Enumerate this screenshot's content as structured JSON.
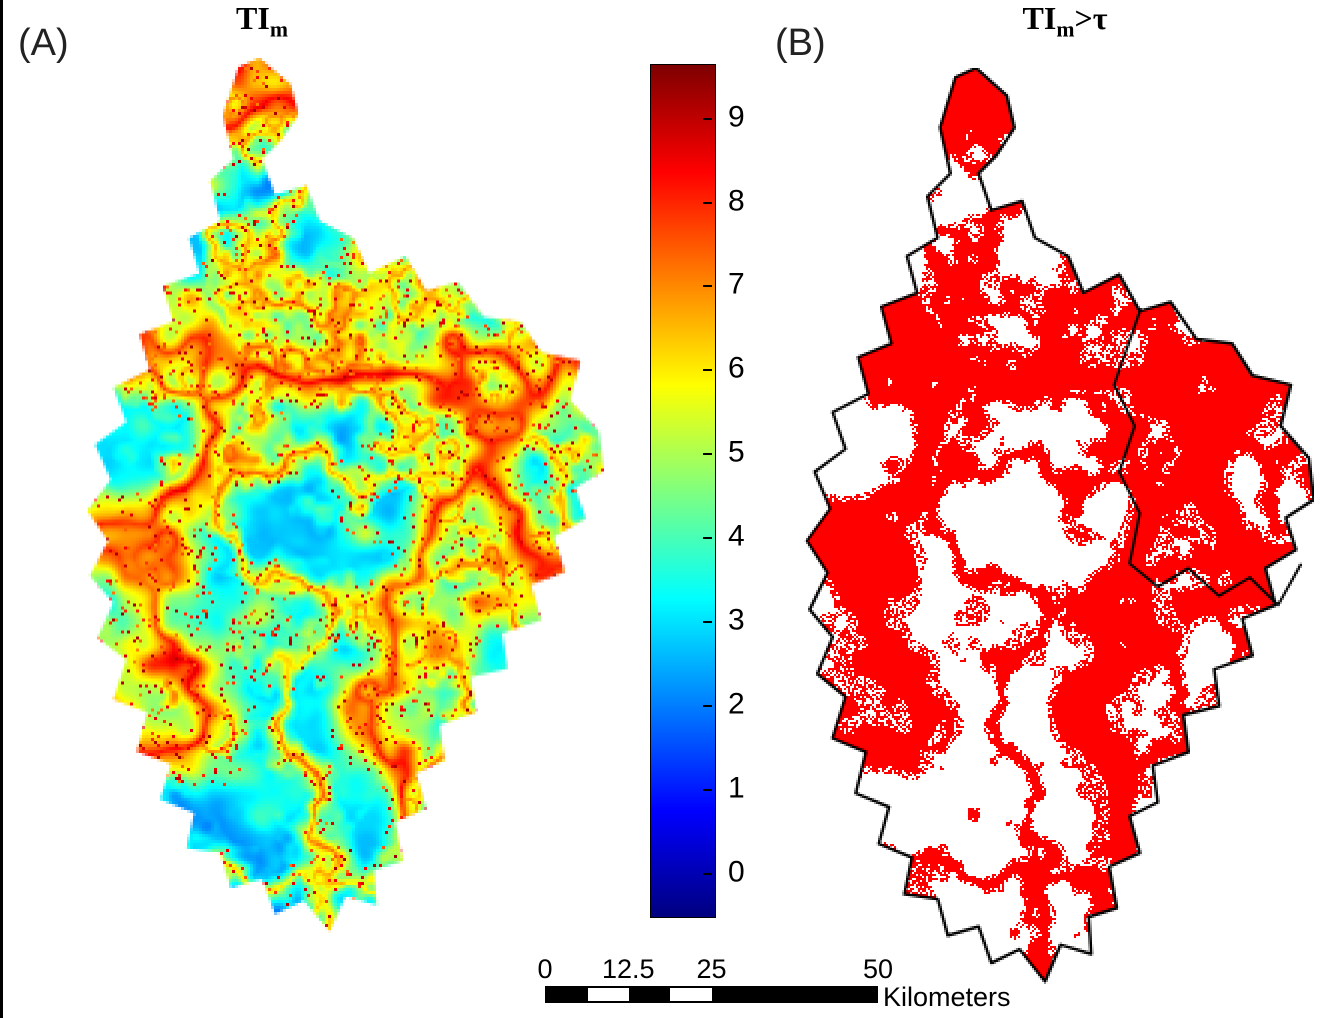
{
  "panelA": {
    "label": "(A)",
    "title_base": "TI",
    "title_sub": "m",
    "title_suffix": ""
  },
  "panelB": {
    "label": "(B)",
    "title_base": "TI",
    "title_sub": "m",
    "title_suffix": ">τ"
  },
  "colorbar": {
    "colormap": "jet",
    "ticks": [
      "9",
      "8",
      "7",
      "6",
      "5",
      "4",
      "3",
      "2",
      "1",
      "0"
    ],
    "value_min": -0.5,
    "value_max": 9.65
  },
  "scalebar": {
    "tick_labels": [
      "0",
      "12.5",
      "25",
      "50"
    ],
    "tick_positions": [
      0,
      0.25,
      0.5,
      1
    ],
    "unit": "Kilometers",
    "segments": [
      {
        "frac": 0.125,
        "color": "#000000"
      },
      {
        "frac": 0.125,
        "color": "#ffffff"
      },
      {
        "frac": 0.125,
        "color": "#000000"
      },
      {
        "frac": 0.125,
        "color": "#ffffff"
      },
      {
        "frac": 0.5,
        "color": "#000000"
      }
    ]
  },
  "map_b": {
    "exceedance_color": "#ff0000",
    "boundary_color": "#000000"
  },
  "geometry": {
    "outline": [
      [
        0.3,
        0.01
      ],
      [
        0.34,
        0.0
      ],
      [
        0.4,
        0.03
      ],
      [
        0.415,
        0.065
      ],
      [
        0.38,
        0.095
      ],
      [
        0.345,
        0.115
      ],
      [
        0.37,
        0.155
      ],
      [
        0.43,
        0.145
      ],
      [
        0.455,
        0.185
      ],
      [
        0.52,
        0.205
      ],
      [
        0.55,
        0.245
      ],
      [
        0.62,
        0.225
      ],
      [
        0.66,
        0.265
      ],
      [
        0.72,
        0.255
      ],
      [
        0.77,
        0.295
      ],
      [
        0.84,
        0.3
      ],
      [
        0.88,
        0.335
      ],
      [
        0.955,
        0.345
      ],
      [
        0.935,
        0.39
      ],
      [
        0.99,
        0.425
      ],
      [
        1.0,
        0.47
      ],
      [
        0.945,
        0.49
      ],
      [
        0.965,
        0.525
      ],
      [
        0.905,
        0.545
      ],
      [
        0.925,
        0.585
      ],
      [
        0.86,
        0.6
      ],
      [
        0.88,
        0.64
      ],
      [
        0.805,
        0.655
      ],
      [
        0.815,
        0.695
      ],
      [
        0.745,
        0.705
      ],
      [
        0.755,
        0.745
      ],
      [
        0.685,
        0.76
      ],
      [
        0.695,
        0.8
      ],
      [
        0.64,
        0.815
      ],
      [
        0.66,
        0.855
      ],
      [
        0.6,
        0.87
      ],
      [
        0.615,
        0.915
      ],
      [
        0.56,
        0.925
      ],
      [
        0.565,
        0.965
      ],
      [
        0.505,
        0.955
      ],
      [
        0.475,
        0.995
      ],
      [
        0.425,
        0.96
      ],
      [
        0.37,
        0.975
      ],
      [
        0.345,
        0.935
      ],
      [
        0.285,
        0.945
      ],
      [
        0.265,
        0.905
      ],
      [
        0.2,
        0.9
      ],
      [
        0.215,
        0.86
      ],
      [
        0.15,
        0.845
      ],
      [
        0.17,
        0.805
      ],
      [
        0.105,
        0.79
      ],
      [
        0.125,
        0.745
      ],
      [
        0.06,
        0.73
      ],
      [
        0.085,
        0.685
      ],
      [
        0.03,
        0.66
      ],
      [
        0.06,
        0.62
      ],
      [
        0.015,
        0.59
      ],
      [
        0.05,
        0.55
      ],
      [
        0.01,
        0.515
      ],
      [
        0.055,
        0.48
      ],
      [
        0.025,
        0.44
      ],
      [
        0.085,
        0.415
      ],
      [
        0.06,
        0.375
      ],
      [
        0.13,
        0.355
      ],
      [
        0.11,
        0.315
      ],
      [
        0.175,
        0.3
      ],
      [
        0.155,
        0.26
      ],
      [
        0.225,
        0.245
      ],
      [
        0.205,
        0.205
      ],
      [
        0.265,
        0.185
      ],
      [
        0.245,
        0.14
      ],
      [
        0.29,
        0.115
      ],
      [
        0.27,
        0.065
      ]
    ],
    "subbasin_line": [
      [
        0.662,
        0.262
      ],
      [
        0.61,
        0.345
      ],
      [
        0.65,
        0.39
      ],
      [
        0.62,
        0.44
      ],
      [
        0.66,
        0.485
      ],
      [
        0.64,
        0.54
      ],
      [
        0.695,
        0.565
      ],
      [
        0.755,
        0.545
      ],
      [
        0.815,
        0.575
      ],
      [
        0.875,
        0.555
      ],
      [
        0.93,
        0.585
      ],
      [
        0.975,
        0.54
      ]
    ]
  }
}
